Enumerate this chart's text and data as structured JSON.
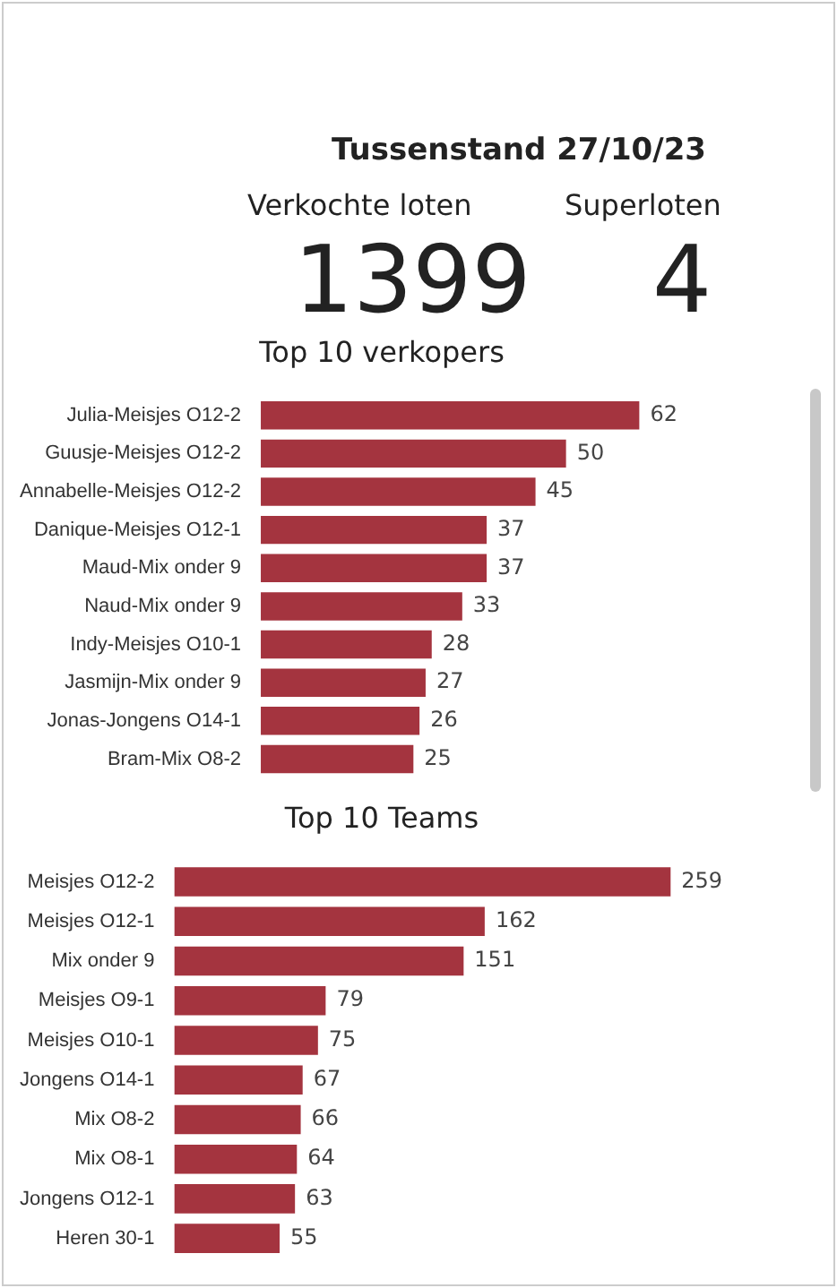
{
  "chart_data": [
    {
      "type": "other",
      "title": "Tussenstand 27/10/23",
      "annotations": [
        "Verkochte loten",
        "1399",
        "Superloten",
        "4"
      ]
    },
    {
      "type": "bar",
      "orientation": "horizontal",
      "title": "Top 10 verkopers",
      "categories": [
        "Julia-Meisjes O12-2",
        "Guusje-Meisjes O12-2",
        "Annabelle-Meisjes O12-2",
        "Danique-Meisjes O12-1",
        "Maud-Mix onder 9",
        "Naud-Mix onder 9",
        "Indy-Meisjes O10-1",
        "Jasmijn-Mix onder 9",
        "Jonas-Jongens O14-1",
        "Bram-Mix O8-2"
      ],
      "values": [
        62,
        50,
        45,
        37,
        37,
        33,
        28,
        27,
        26,
        25
      ],
      "color": "#a4343f",
      "data_labels": true,
      "grid": false,
      "legend": false,
      "tick_labels": "y"
    },
    {
      "type": "bar",
      "orientation": "horizontal",
      "title": "Top 10 Teams",
      "categories": [
        "Meisjes O12-2",
        "Meisjes O12-1",
        "Mix onder 9",
        "Meisjes O9-1",
        "Meisjes O10-1",
        "Jongens O14-1",
        "Mix O8-2",
        "Mix O8-1",
        "Jongens O12-1",
        "Heren 30-1"
      ],
      "values": [
        259,
        162,
        151,
        79,
        75,
        67,
        66,
        64,
        63,
        55
      ],
      "color": "#a4343f",
      "data_labels": true,
      "grid": false,
      "legend": false,
      "tick_labels": "y"
    }
  ]
}
